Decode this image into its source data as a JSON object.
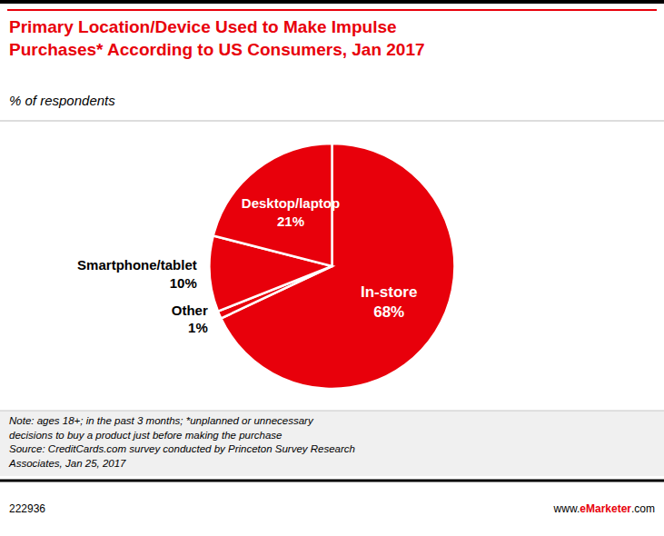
{
  "chart_data": {
    "type": "pie",
    "title": "Primary Location/Device Used to Make Impulse\nPurchases* According to US Consumers, Jan 2017",
    "subtitle": "% of respondents",
    "categories": [
      "In-store",
      "Other",
      "Smartphone/tablet",
      "Desktop/laptop"
    ],
    "values": [
      68,
      1,
      10,
      21
    ],
    "value_labels": [
      "68%",
      "1%",
      "10%",
      "21%"
    ],
    "data_labels": true,
    "color": "#E8000B",
    "annotations": [
      "Note: ages 18+; in the past 3 months; *unplanned or unnecessary\ndecisions to buy a product just before making the purchase\nSource: CreditCards.com survey conducted by Princeton Survey Research\nAssociates, Jan 25, 2017",
      "222936",
      "www.",
      "eMarketer",
      ".com"
    ]
  }
}
